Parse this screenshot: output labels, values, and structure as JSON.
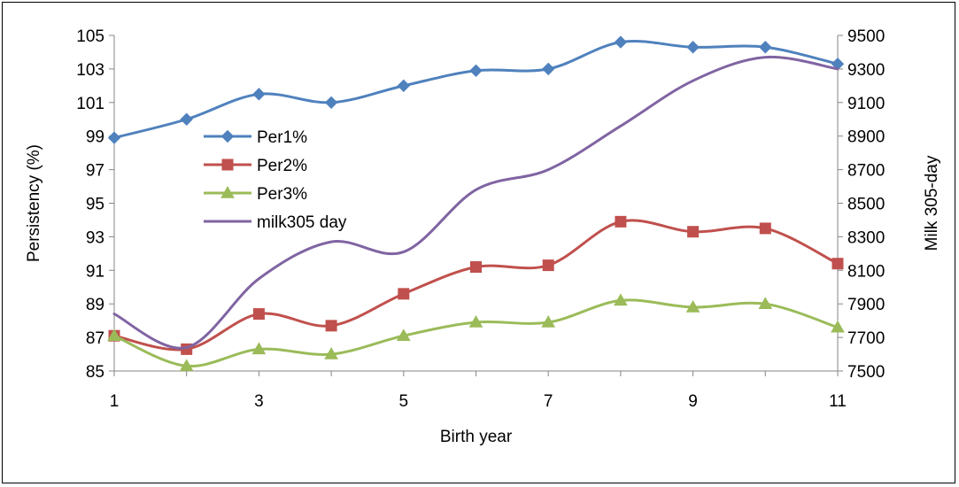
{
  "chart_data": {
    "type": "line",
    "x": [
      1,
      2,
      3,
      4,
      5,
      6,
      7,
      8,
      9,
      10,
      11
    ],
    "x_ticks": [
      1,
      3,
      5,
      7,
      9,
      11
    ],
    "xlabel": "Birth year",
    "ylabel": "Persistency (%)",
    "y2label": "Milk 305-day",
    "ylim": [
      85,
      105
    ],
    "y_ticks": [
      85,
      87,
      89,
      91,
      93,
      95,
      97,
      99,
      101,
      103,
      105
    ],
    "y2lim": [
      7500,
      9500
    ],
    "y2_ticks": [
      7500,
      7700,
      7900,
      8100,
      8300,
      8500,
      8700,
      8900,
      9100,
      9300,
      9500
    ],
    "grid": false,
    "legend_position": "upper-left-inside",
    "series": [
      {
        "name": "Per1%",
        "axis": "left",
        "marker": "diamond",
        "color": "#4F81BD",
        "values": [
          98.9,
          100.0,
          101.5,
          101.0,
          102.0,
          102.9,
          103.0,
          104.6,
          104.3,
          104.3,
          103.3
        ]
      },
      {
        "name": "Per2%",
        "axis": "left",
        "marker": "square",
        "color": "#C0504D",
        "values": [
          87.1,
          86.3,
          88.4,
          87.7,
          89.6,
          91.2,
          91.3,
          93.9,
          93.3,
          93.5,
          91.4
        ]
      },
      {
        "name": "Per3%",
        "axis": "left",
        "marker": "triangle",
        "color": "#9BBB59",
        "values": [
          87.1,
          85.3,
          86.3,
          86.0,
          87.1,
          87.9,
          87.9,
          89.2,
          88.8,
          89.0,
          87.6
        ]
      },
      {
        "name": "milk305 day",
        "axis": "right",
        "marker": "none",
        "color": "#8064A2",
        "values": [
          7840,
          7640,
          8050,
          8270,
          8210,
          8580,
          8700,
          8960,
          9230,
          9370,
          9300
        ]
      }
    ]
  }
}
